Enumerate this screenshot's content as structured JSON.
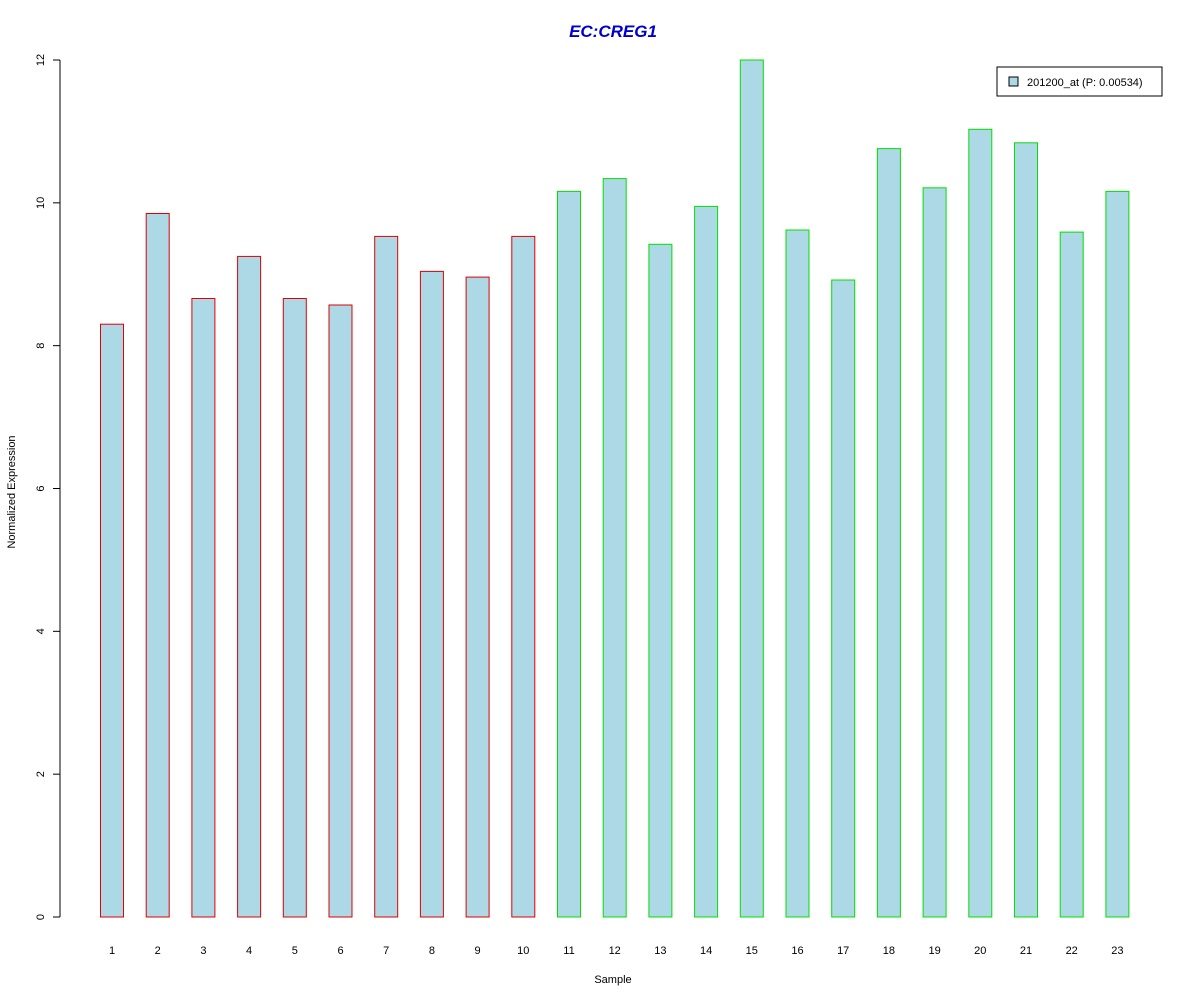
{
  "chart_data": {
    "type": "bar",
    "title": "EC:CREG1",
    "xlabel": "Sample",
    "ylabel": "Normalized Expression",
    "categories": [
      "1",
      "2",
      "3",
      "4",
      "5",
      "6",
      "7",
      "8",
      "9",
      "10",
      "11",
      "12",
      "13",
      "14",
      "15",
      "16",
      "17",
      "18",
      "19",
      "20",
      "21",
      "22",
      "23"
    ],
    "series": [
      {
        "name": "201200_at (P: 0.00534)",
        "values": [
          8.3,
          9.85,
          8.66,
          9.25,
          8.66,
          8.57,
          9.53,
          9.04,
          8.96,
          9.53,
          10.16,
          10.34,
          9.42,
          9.95,
          12.0,
          9.62,
          8.92,
          10.76,
          10.21,
          11.03,
          10.84,
          9.59,
          10.16
        ]
      }
    ],
    "ylim": [
      0,
      12
    ],
    "yticks": [
      0,
      2,
      4,
      6,
      8,
      10,
      12
    ],
    "grid": false,
    "legend": "top-right",
    "groups": [
      {
        "samples": [
          1,
          2,
          3,
          4,
          5,
          6,
          7,
          8,
          9,
          10
        ],
        "border_color": "#e00000"
      },
      {
        "samples": [
          11,
          12,
          13,
          14,
          15,
          16,
          17,
          18,
          19,
          20,
          21,
          22,
          23
        ],
        "border_color": "#00e000"
      }
    ],
    "colors": {
      "bar_fill": "#add8e6",
      "title": "#0000cc"
    }
  }
}
